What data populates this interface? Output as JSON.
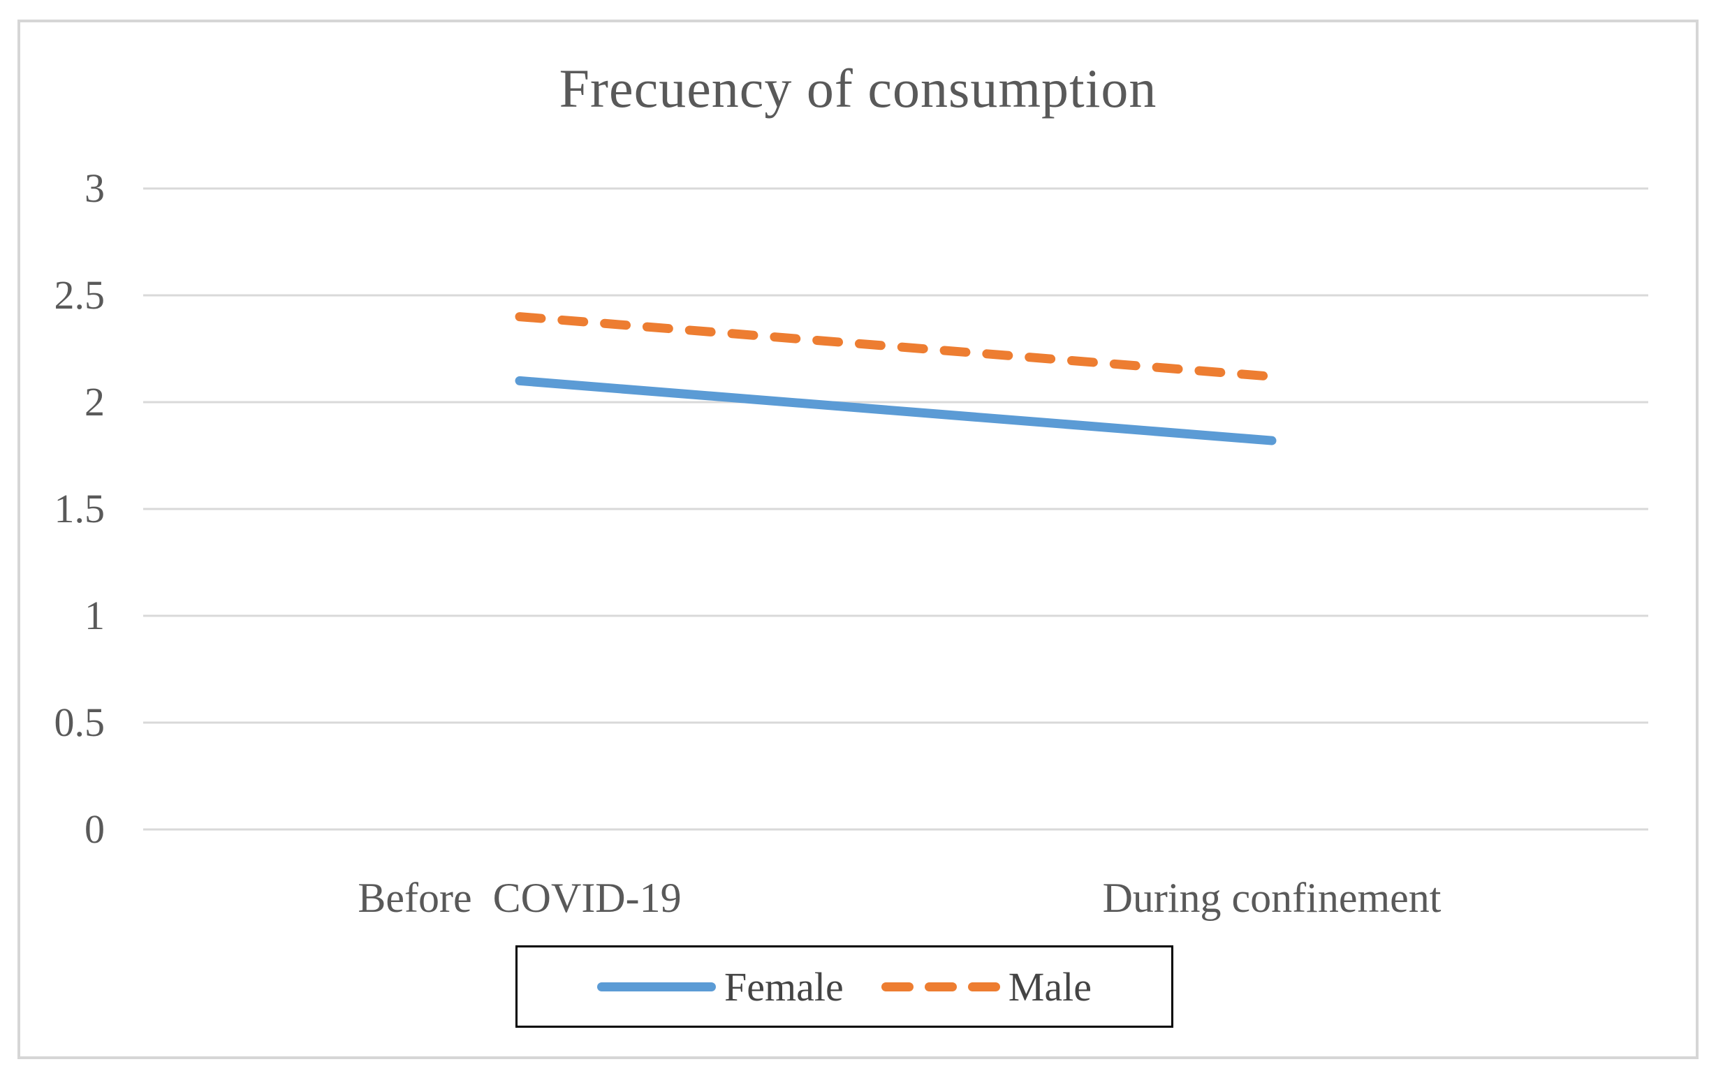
{
  "chart_data": {
    "type": "line",
    "title": "Frecuency of consumption",
    "categories": [
      "Before  COVID-19",
      "During confinement"
    ],
    "series": [
      {
        "name": "Female",
        "values": [
          2.1,
          1.82
        ],
        "color": "#5B9BD5",
        "style": "solid"
      },
      {
        "name": "Male",
        "values": [
          2.4,
          2.12
        ],
        "color": "#ED7D31",
        "style": "dashed"
      }
    ],
    "ylim": [
      0,
      3
    ],
    "yticks": [
      3,
      2.5,
      2,
      1.5,
      1,
      0.5,
      0
    ],
    "ytick_labels": [
      "3",
      "2.5",
      "2",
      "1.5",
      "1",
      "0.5",
      "0"
    ],
    "xlabel": "",
    "ylabel": "",
    "grid": "horizontal",
    "gridline_color": "#d9d9d9",
    "axis_text_color": "#595959",
    "title_color": "#595959",
    "frame_border_color": "#d6d6d6",
    "legend": {
      "position": "bottom",
      "border_color": "#000000",
      "entries": [
        "Female",
        "Male"
      ]
    }
  }
}
